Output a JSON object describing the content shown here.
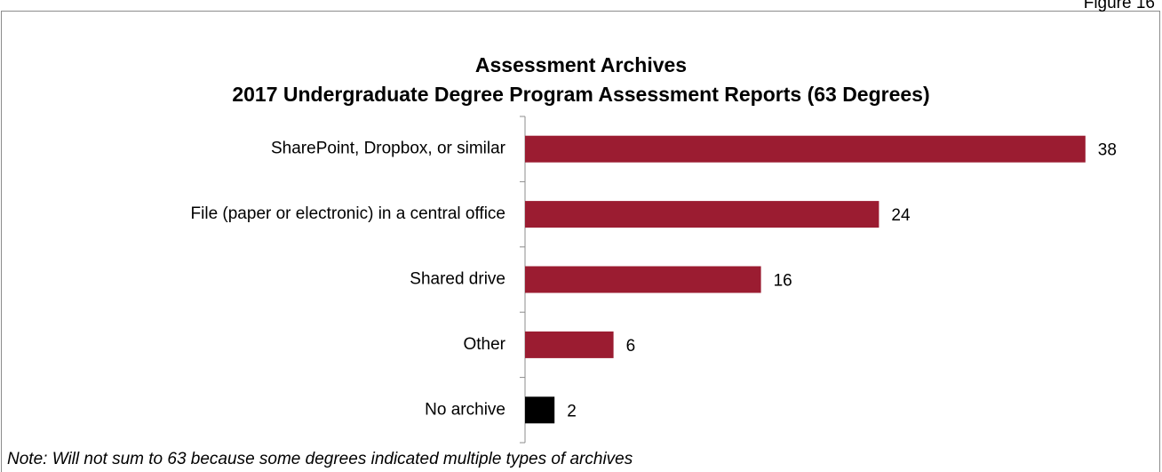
{
  "chart_data": {
    "type": "barh",
    "figure_label": "Figure 16",
    "title": "Assessment Archives",
    "subtitle": "2017 Undergraduate Degree Program Assessment Reports (63 Degrees)",
    "categories": [
      "SharePoint, Dropbox, or similar",
      "File (paper or electronic) in a central office",
      "Shared drive",
      "Other",
      "No archive"
    ],
    "values": [
      38,
      24,
      16,
      6,
      2
    ],
    "colors": [
      "#9b1c31",
      "#9b1c31",
      "#9b1c31",
      "#9b1c31",
      "#000000"
    ],
    "xlim": [
      0,
      40
    ],
    "note": "Note: Will not sum to 63 because some degrees indicated multiple types of archives"
  }
}
